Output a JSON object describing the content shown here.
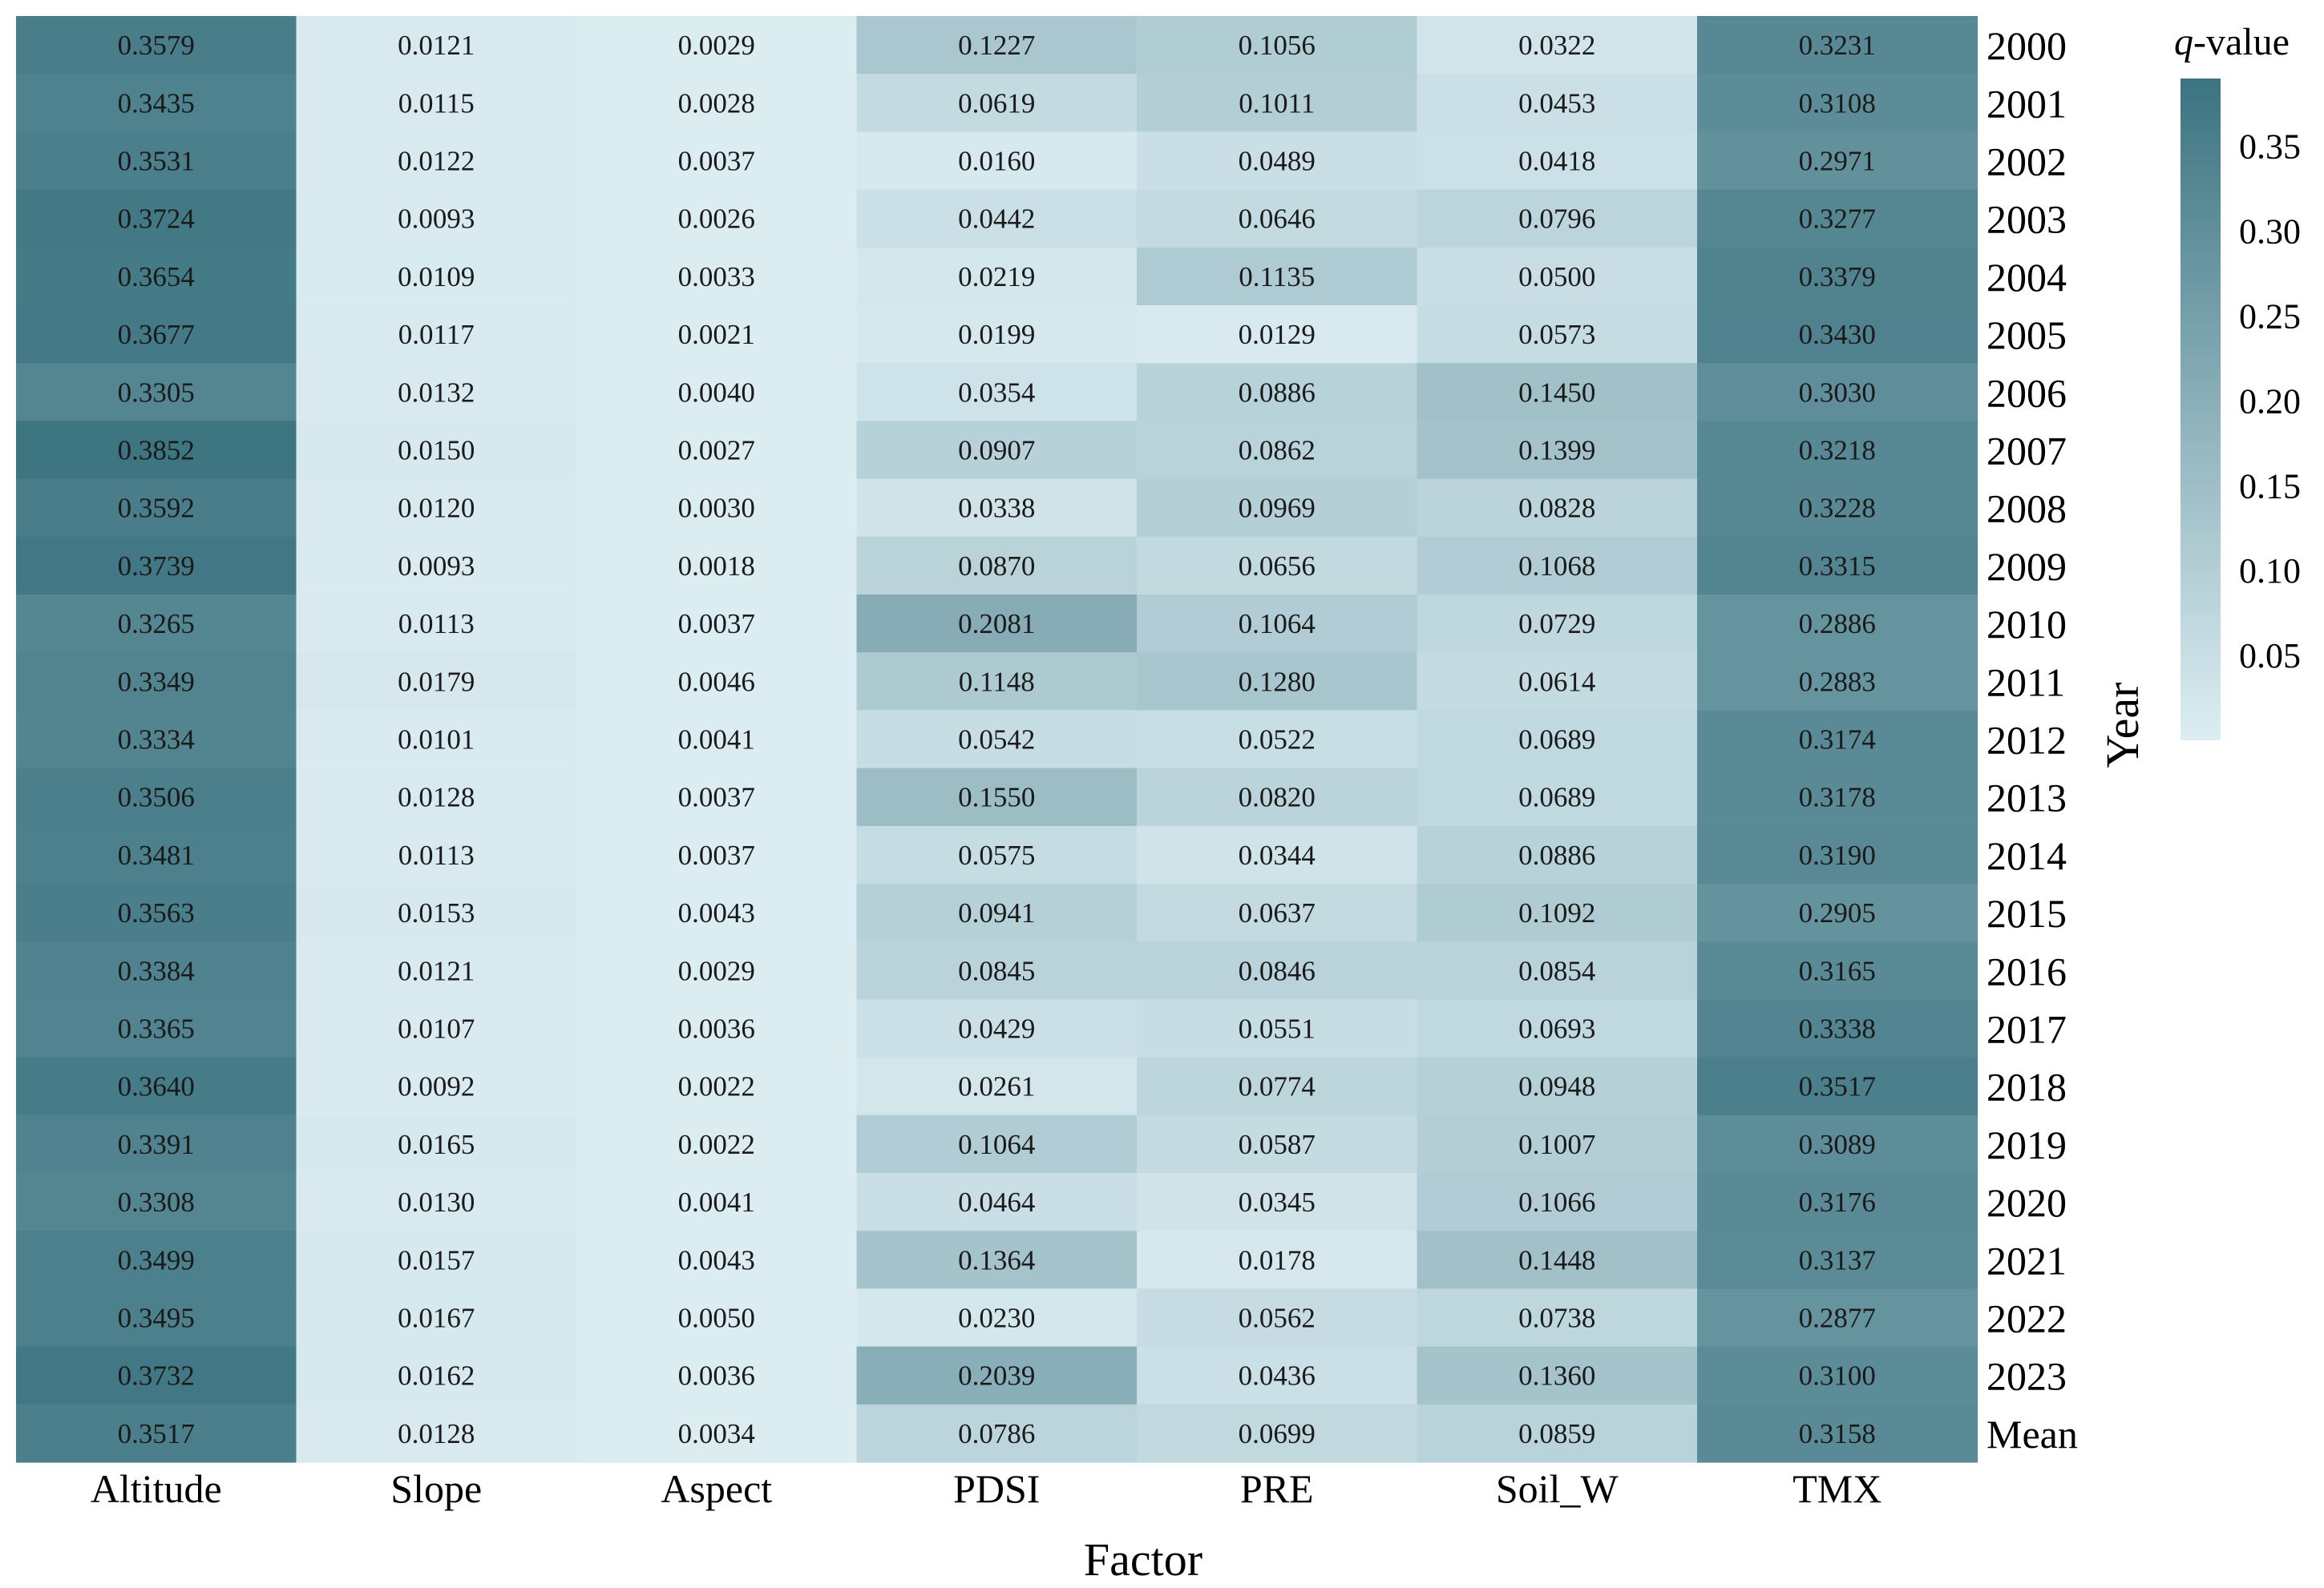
{
  "chart_data": {
    "type": "heatmap",
    "xlabel": "Factor",
    "ylabel": "Year",
    "columns": [
      "Altitude",
      "Slope",
      "Aspect",
      "PDSI",
      "PRE",
      "Soil_W",
      "TMX"
    ],
    "rows": [
      "2000",
      "2001",
      "2002",
      "2003",
      "2004",
      "2005",
      "2006",
      "2007",
      "2008",
      "2009",
      "2010",
      "2011",
      "2012",
      "2013",
      "2014",
      "2015",
      "2016",
      "2017",
      "2018",
      "2019",
      "2020",
      "2021",
      "2022",
      "2023",
      "Mean"
    ],
    "values": [
      [
        "0.3579",
        "0.0121",
        "0.0029",
        "0.1227",
        "0.1056",
        "0.0322",
        "0.3231"
      ],
      [
        "0.3435",
        "0.0115",
        "0.0028",
        "0.0619",
        "0.1011",
        "0.0453",
        "0.3108"
      ],
      [
        "0.3531",
        "0.0122",
        "0.0037",
        "0.0160",
        "0.0489",
        "0.0418",
        "0.2971"
      ],
      [
        "0.3724",
        "0.0093",
        "0.0026",
        "0.0442",
        "0.0646",
        "0.0796",
        "0.3277"
      ],
      [
        "0.3654",
        "0.0109",
        "0.0033",
        "0.0219",
        "0.1135",
        "0.0500",
        "0.3379"
      ],
      [
        "0.3677",
        "0.0117",
        "0.0021",
        "0.0199",
        "0.0129",
        "0.0573",
        "0.3430"
      ],
      [
        "0.3305",
        "0.0132",
        "0.0040",
        "0.0354",
        "0.0886",
        "0.1450",
        "0.3030"
      ],
      [
        "0.3852",
        "0.0150",
        "0.0027",
        "0.0907",
        "0.0862",
        "0.1399",
        "0.3218"
      ],
      [
        "0.3592",
        "0.0120",
        "0.0030",
        "0.0338",
        "0.0969",
        "0.0828",
        "0.3228"
      ],
      [
        "0.3739",
        "0.0093",
        "0.0018",
        "0.0870",
        "0.0656",
        "0.1068",
        "0.3315"
      ],
      [
        "0.3265",
        "0.0113",
        "0.0037",
        "0.2081",
        "0.1064",
        "0.0729",
        "0.2886"
      ],
      [
        "0.3349",
        "0.0179",
        "0.0046",
        "0.1148",
        "0.1280",
        "0.0614",
        "0.2883"
      ],
      [
        "0.3334",
        "0.0101",
        "0.0041",
        "0.0542",
        "0.0522",
        "0.0689",
        "0.3174"
      ],
      [
        "0.3506",
        "0.0128",
        "0.0037",
        "0.1550",
        "0.0820",
        "0.0689",
        "0.3178"
      ],
      [
        "0.3481",
        "0.0113",
        "0.0037",
        "0.0575",
        "0.0344",
        "0.0886",
        "0.3190"
      ],
      [
        "0.3563",
        "0.0153",
        "0.0043",
        "0.0941",
        "0.0637",
        "0.1092",
        "0.2905"
      ],
      [
        "0.3384",
        "0.0121",
        "0.0029",
        "0.0845",
        "0.0846",
        "0.0854",
        "0.3165"
      ],
      [
        "0.3365",
        "0.0107",
        "0.0036",
        "0.0429",
        "0.0551",
        "0.0693",
        "0.3338"
      ],
      [
        "0.3640",
        "0.0092",
        "0.0022",
        "0.0261",
        "0.0774",
        "0.0948",
        "0.3517"
      ],
      [
        "0.3391",
        "0.0165",
        "0.0022",
        "0.1064",
        "0.0587",
        "0.1007",
        "0.3089"
      ],
      [
        "0.3308",
        "0.0130",
        "0.0041",
        "0.0464",
        "0.0345",
        "0.1066",
        "0.3176"
      ],
      [
        "0.3499",
        "0.0157",
        "0.0043",
        "0.1364",
        "0.0178",
        "0.1448",
        "0.3137"
      ],
      [
        "0.3495",
        "0.0167",
        "0.0050",
        "0.0230",
        "0.0562",
        "0.0738",
        "0.2877"
      ],
      [
        "0.3732",
        "0.0162",
        "0.0036",
        "0.2039",
        "0.0436",
        "0.1360",
        "0.3100"
      ],
      [
        "0.3517",
        "0.0128",
        "0.0034",
        "0.0786",
        "0.0699",
        "0.0859",
        "0.3158"
      ]
    ],
    "colorbar": {
      "title_italic": "q",
      "title_rest": "-value",
      "ticks": [
        "0.05",
        "0.10",
        "0.15",
        "0.20",
        "0.25",
        "0.30",
        "0.35"
      ],
      "range": [
        0,
        0.39
      ]
    },
    "colors": {
      "low": "#ddeef3",
      "high": "#3b7380"
    }
  }
}
